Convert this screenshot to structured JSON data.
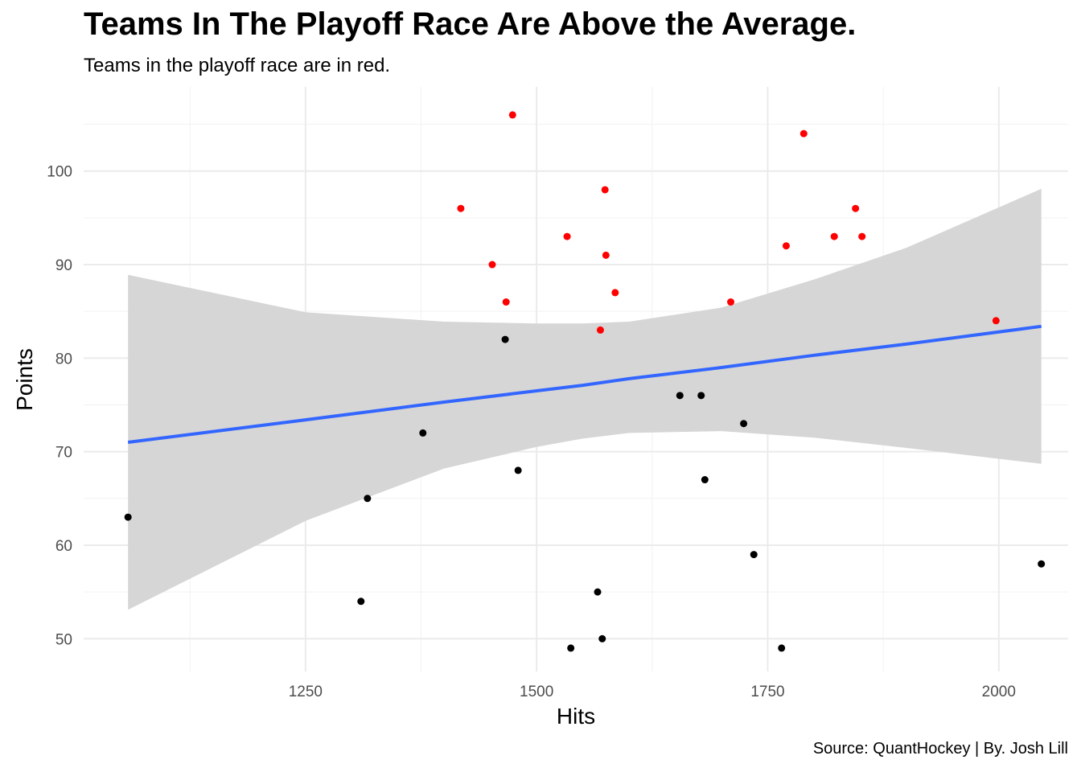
{
  "chart_data": {
    "type": "scatter",
    "title": "Teams In The Playoff Race Are Above the Average.",
    "subtitle": "Teams in the playoff race are in red.",
    "caption": "Source: QuantHockey | By. Josh Lill",
    "xlabel": "Hits",
    "ylabel": "Points",
    "xlim": [
      1010,
      2075
    ],
    "ylim": [
      46.5,
      109
    ],
    "xticks": [
      1250,
      1500,
      1750,
      2000
    ],
    "yticks": [
      50,
      60,
      70,
      80,
      90,
      100
    ],
    "grid": true,
    "series": [
      {
        "color": "#ff0000",
        "points": [
          {
            "x": 1474,
            "y": 106
          },
          {
            "x": 1789,
            "y": 104
          },
          {
            "x": 1418,
            "y": 96
          },
          {
            "x": 1574,
            "y": 98
          },
          {
            "x": 1845,
            "y": 96
          },
          {
            "x": 1533,
            "y": 93
          },
          {
            "x": 1822,
            "y": 93
          },
          {
            "x": 1852,
            "y": 93
          },
          {
            "x": 1770,
            "y": 92
          },
          {
            "x": 1452,
            "y": 90
          },
          {
            "x": 1575,
            "y": 91
          },
          {
            "x": 1585,
            "y": 87
          },
          {
            "x": 1467,
            "y": 86
          },
          {
            "x": 1710,
            "y": 86
          },
          {
            "x": 1569,
            "y": 83
          },
          {
            "x": 1997,
            "y": 84
          }
        ]
      },
      {
        "color": "#000000",
        "points": [
          {
            "x": 1466,
            "y": 82
          },
          {
            "x": 1655,
            "y": 76
          },
          {
            "x": 1678,
            "y": 76
          },
          {
            "x": 1377,
            "y": 72
          },
          {
            "x": 1724,
            "y": 73
          },
          {
            "x": 1480,
            "y": 68
          },
          {
            "x": 1682,
            "y": 67
          },
          {
            "x": 1317,
            "y": 65
          },
          {
            "x": 1058,
            "y": 63
          },
          {
            "x": 1735,
            "y": 59
          },
          {
            "x": 2046,
            "y": 58
          },
          {
            "x": 1310,
            "y": 54
          },
          {
            "x": 1566,
            "y": 55
          },
          {
            "x": 1571,
            "y": 50
          },
          {
            "x": 1537,
            "y": 49
          },
          {
            "x": 1765,
            "y": 49
          }
        ]
      }
    ],
    "trend": {
      "color": "#3366ff",
      "band_color": "#d6d6d6",
      "x": [
        1058,
        1250,
        1400,
        1500,
        1550,
        1600,
        1700,
        1800,
        1900,
        2046
      ],
      "fit": [
        71.0,
        73.4,
        75.3,
        76.5,
        77.1,
        77.8,
        79.0,
        80.3,
        81.5,
        83.4
      ],
      "lower": [
        53.1,
        62.6,
        68.2,
        70.5,
        71.4,
        72.0,
        72.2,
        71.5,
        70.4,
        68.7
      ],
      "upper": [
        88.9,
        84.9,
        83.9,
        83.7,
        83.7,
        83.9,
        85.4,
        88.4,
        91.8,
        98.1
      ]
    }
  }
}
